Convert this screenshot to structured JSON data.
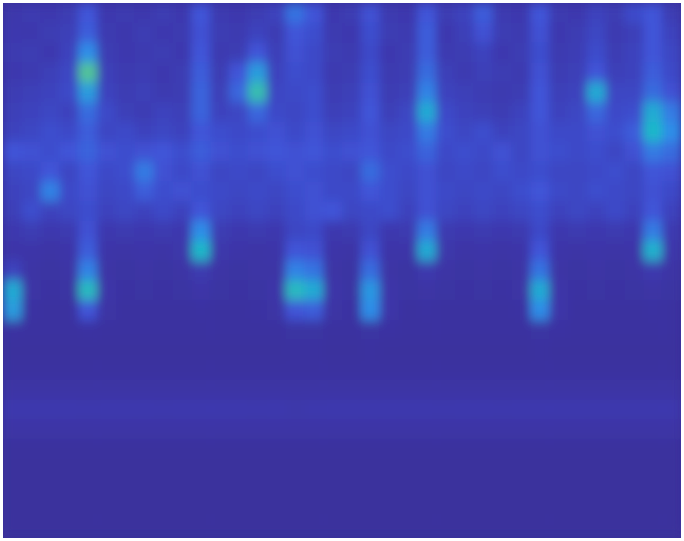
{
  "chart_data": {
    "type": "heatmap",
    "tick_labels": false,
    "color_range": [
      0,
      1
    ],
    "cells": [
      [
        0.12,
        0.15,
        0.14,
        0.16,
        0.3,
        0.14,
        0.15,
        0.13,
        0.16,
        0.14,
        0.3,
        0.15,
        0.13,
        0.16,
        0.2,
        0.38,
        0.3,
        0.14,
        0.16,
        0.28,
        0.15,
        0.13,
        0.3,
        0.16,
        0.2,
        0.32,
        0.15,
        0.14,
        0.3,
        0.15,
        0.14,
        0.2,
        0.16,
        0.25,
        0.3,
        0.16
      ],
      [
        0.14,
        0.13,
        0.16,
        0.18,
        0.32,
        0.15,
        0.13,
        0.16,
        0.14,
        0.15,
        0.28,
        0.16,
        0.15,
        0.2,
        0.16,
        0.3,
        0.26,
        0.15,
        0.14,
        0.26,
        0.16,
        0.15,
        0.32,
        0.14,
        0.18,
        0.28,
        0.16,
        0.15,
        0.28,
        0.14,
        0.16,
        0.22,
        0.15,
        0.18,
        0.3,
        0.2
      ],
      [
        0.15,
        0.16,
        0.14,
        0.2,
        0.45,
        0.16,
        0.14,
        0.15,
        0.16,
        0.14,
        0.3,
        0.15,
        0.16,
        0.3,
        0.18,
        0.28,
        0.24,
        0.16,
        0.15,
        0.24,
        0.14,
        0.16,
        0.32,
        0.15,
        0.16,
        0.2,
        0.14,
        0.16,
        0.26,
        0.15,
        0.17,
        0.25,
        0.16,
        0.2,
        0.3,
        0.22
      ],
      [
        0.14,
        0.15,
        0.18,
        0.22,
        0.7,
        0.18,
        0.15,
        0.16,
        0.14,
        0.16,
        0.32,
        0.16,
        0.3,
        0.5,
        0.2,
        0.26,
        0.24,
        0.15,
        0.16,
        0.26,
        0.15,
        0.16,
        0.36,
        0.18,
        0.15,
        0.18,
        0.16,
        0.15,
        0.28,
        0.16,
        0.18,
        0.3,
        0.18,
        0.2,
        0.32,
        0.24
      ],
      [
        0.16,
        0.18,
        0.2,
        0.24,
        0.5,
        0.2,
        0.16,
        0.18,
        0.15,
        0.16,
        0.34,
        0.18,
        0.35,
        0.65,
        0.22,
        0.24,
        0.26,
        0.16,
        0.18,
        0.28,
        0.16,
        0.18,
        0.42,
        0.2,
        0.18,
        0.16,
        0.15,
        0.16,
        0.3,
        0.18,
        0.2,
        0.55,
        0.22,
        0.22,
        0.36,
        0.28
      ],
      [
        0.18,
        0.2,
        0.22,
        0.2,
        0.36,
        0.24,
        0.18,
        0.16,
        0.2,
        0.18,
        0.34,
        0.2,
        0.22,
        0.35,
        0.24,
        0.22,
        0.26,
        0.18,
        0.2,
        0.3,
        0.18,
        0.22,
        0.55,
        0.24,
        0.2,
        0.18,
        0.16,
        0.2,
        0.3,
        0.2,
        0.22,
        0.35,
        0.24,
        0.26,
        0.55,
        0.4
      ],
      [
        0.2,
        0.22,
        0.26,
        0.24,
        0.32,
        0.22,
        0.24,
        0.2,
        0.22,
        0.2,
        0.3,
        0.26,
        0.24,
        0.26,
        0.28,
        0.24,
        0.28,
        0.22,
        0.24,
        0.28,
        0.22,
        0.24,
        0.4,
        0.26,
        0.22,
        0.26,
        0.2,
        0.22,
        0.28,
        0.24,
        0.24,
        0.28,
        0.26,
        0.32,
        0.6,
        0.45
      ],
      [
        0.3,
        0.28,
        0.26,
        0.3,
        0.34,
        0.28,
        0.26,
        0.28,
        0.3,
        0.26,
        0.32,
        0.28,
        0.26,
        0.28,
        0.3,
        0.28,
        0.3,
        0.26,
        0.28,
        0.3,
        0.24,
        0.26,
        0.34,
        0.24,
        0.26,
        0.24,
        0.28,
        0.22,
        0.28,
        0.26,
        0.24,
        0.26,
        0.22,
        0.28,
        0.4,
        0.36
      ],
      [
        0.22,
        0.24,
        0.3,
        0.22,
        0.3,
        0.24,
        0.26,
        0.4,
        0.28,
        0.24,
        0.28,
        0.22,
        0.24,
        0.22,
        0.26,
        0.28,
        0.26,
        0.24,
        0.22,
        0.36,
        0.26,
        0.24,
        0.28,
        0.22,
        0.24,
        0.22,
        0.26,
        0.24,
        0.26,
        0.22,
        0.22,
        0.24,
        0.26,
        0.22,
        0.3,
        0.28
      ],
      [
        0.2,
        0.22,
        0.42,
        0.24,
        0.28,
        0.22,
        0.24,
        0.32,
        0.26,
        0.28,
        0.26,
        0.24,
        0.22,
        0.24,
        0.22,
        0.26,
        0.28,
        0.24,
        0.24,
        0.3,
        0.26,
        0.22,
        0.28,
        0.24,
        0.22,
        0.24,
        0.22,
        0.26,
        0.3,
        0.24,
        0.22,
        0.26,
        0.24,
        0.22,
        0.28,
        0.24
      ],
      [
        0.18,
        0.26,
        0.2,
        0.22,
        0.26,
        0.2,
        0.22,
        0.2,
        0.24,
        0.2,
        0.3,
        0.22,
        0.2,
        0.22,
        0.2,
        0.24,
        0.28,
        0.3,
        0.22,
        0.24,
        0.26,
        0.2,
        0.28,
        0.22,
        0.2,
        0.22,
        0.2,
        0.22,
        0.26,
        0.2,
        0.22,
        0.2,
        0.24,
        0.2,
        0.3,
        0.2
      ],
      [
        0.14,
        0.16,
        0.14,
        0.15,
        0.28,
        0.14,
        0.15,
        0.14,
        0.15,
        0.14,
        0.45,
        0.16,
        0.14,
        0.15,
        0.14,
        0.22,
        0.24,
        0.14,
        0.15,
        0.22,
        0.14,
        0.15,
        0.4,
        0.15,
        0.14,
        0.15,
        0.14,
        0.15,
        0.24,
        0.14,
        0.15,
        0.14,
        0.15,
        0.14,
        0.4,
        0.15
      ],
      [
        0.1,
        0.1,
        0.09,
        0.1,
        0.32,
        0.1,
        0.09,
        0.1,
        0.09,
        0.11,
        0.6,
        0.12,
        0.1,
        0.09,
        0.1,
        0.3,
        0.28,
        0.1,
        0.09,
        0.28,
        0.1,
        0.1,
        0.55,
        0.12,
        0.09,
        0.1,
        0.09,
        0.1,
        0.3,
        0.1,
        0.09,
        0.1,
        0.09,
        0.1,
        0.58,
        0.12
      ],
      [
        0.2,
        0.08,
        0.07,
        0.08,
        0.42,
        0.08,
        0.07,
        0.08,
        0.07,
        0.08,
        0.15,
        0.08,
        0.07,
        0.08,
        0.08,
        0.42,
        0.38,
        0.08,
        0.07,
        0.36,
        0.08,
        0.07,
        0.14,
        0.08,
        0.07,
        0.08,
        0.07,
        0.08,
        0.38,
        0.08,
        0.07,
        0.08,
        0.07,
        0.08,
        0.14,
        0.08
      ],
      [
        0.55,
        0.08,
        0.06,
        0.07,
        0.62,
        0.1,
        0.06,
        0.07,
        0.06,
        0.07,
        0.1,
        0.07,
        0.06,
        0.07,
        0.1,
        0.62,
        0.55,
        0.1,
        0.07,
        0.48,
        0.1,
        0.07,
        0.08,
        0.07,
        0.06,
        0.07,
        0.06,
        0.08,
        0.55,
        0.1,
        0.06,
        0.07,
        0.06,
        0.07,
        0.08,
        0.07
      ],
      [
        0.5,
        0.06,
        0.05,
        0.05,
        0.3,
        0.08,
        0.05,
        0.05,
        0.05,
        0.05,
        0.06,
        0.05,
        0.05,
        0.06,
        0.08,
        0.3,
        0.32,
        0.08,
        0.06,
        0.45,
        0.1,
        0.05,
        0.06,
        0.05,
        0.05,
        0.05,
        0.05,
        0.06,
        0.45,
        0.1,
        0.05,
        0.05,
        0.05,
        0.05,
        0.06,
        0.05
      ],
      [
        0.06,
        0.05,
        0.05,
        0.05,
        0.06,
        0.05,
        0.05,
        0.05,
        0.05,
        0.05,
        0.05,
        0.05,
        0.05,
        0.05,
        0.05,
        0.07,
        0.07,
        0.05,
        0.05,
        0.07,
        0.06,
        0.05,
        0.05,
        0.05,
        0.05,
        0.05,
        0.05,
        0.05,
        0.07,
        0.06,
        0.05,
        0.05,
        0.05,
        0.05,
        0.05,
        0.05
      ],
      [
        0.04,
        0.04,
        0.04,
        0.04,
        0.04,
        0.04,
        0.04,
        0.04,
        0.04,
        0.04,
        0.04,
        0.04,
        0.04,
        0.04,
        0.04,
        0.05,
        0.05,
        0.04,
        0.04,
        0.05,
        0.04,
        0.04,
        0.04,
        0.04,
        0.04,
        0.04,
        0.04,
        0.04,
        0.05,
        0.04,
        0.04,
        0.04,
        0.04,
        0.04,
        0.04,
        0.04
      ],
      [
        0.05,
        0.05,
        0.05,
        0.05,
        0.05,
        0.05,
        0.05,
        0.05,
        0.05,
        0.05,
        0.05,
        0.05,
        0.05,
        0.05,
        0.05,
        0.05,
        0.05,
        0.05,
        0.05,
        0.05,
        0.05,
        0.05,
        0.05,
        0.05,
        0.05,
        0.05,
        0.05,
        0.05,
        0.05,
        0.05,
        0.05,
        0.05,
        0.05,
        0.05,
        0.05,
        0.05
      ],
      [
        0.08,
        0.08,
        0.08,
        0.08,
        0.08,
        0.08,
        0.08,
        0.08,
        0.08,
        0.08,
        0.08,
        0.08,
        0.08,
        0.08,
        0.08,
        0.08,
        0.08,
        0.08,
        0.08,
        0.08,
        0.08,
        0.08,
        0.08,
        0.08,
        0.08,
        0.08,
        0.08,
        0.08,
        0.08,
        0.08,
        0.08,
        0.08,
        0.08,
        0.08,
        0.08,
        0.08
      ],
      [
        0.14,
        0.14,
        0.14,
        0.14,
        0.13,
        0.14,
        0.14,
        0.14,
        0.13,
        0.14,
        0.14,
        0.14,
        0.14,
        0.13,
        0.14,
        0.12,
        0.13,
        0.14,
        0.14,
        0.14,
        0.14,
        0.14,
        0.14,
        0.13,
        0.14,
        0.14,
        0.13,
        0.14,
        0.14,
        0.14,
        0.14,
        0.14,
        0.14,
        0.14,
        0.14,
        0.14
      ],
      [
        0.09,
        0.09,
        0.09,
        0.09,
        0.09,
        0.09,
        0.09,
        0.09,
        0.09,
        0.09,
        0.09,
        0.09,
        0.09,
        0.09,
        0.09,
        0.09,
        0.09,
        0.09,
        0.09,
        0.09,
        0.09,
        0.09,
        0.09,
        0.09,
        0.09,
        0.09,
        0.09,
        0.09,
        0.09,
        0.09,
        0.09,
        0.09,
        0.09,
        0.09,
        0.09,
        0.09
      ],
      [
        0.04,
        0.04,
        0.04,
        0.04,
        0.04,
        0.04,
        0.04,
        0.04,
        0.04,
        0.04,
        0.04,
        0.04,
        0.04,
        0.04,
        0.04,
        0.04,
        0.04,
        0.04,
        0.04,
        0.04,
        0.04,
        0.04,
        0.04,
        0.04,
        0.04,
        0.04,
        0.04,
        0.04,
        0.04,
        0.04,
        0.04,
        0.04,
        0.04,
        0.04,
        0.04,
        0.04
      ],
      [
        0.03,
        0.03,
        0.03,
        0.03,
        0.03,
        0.03,
        0.03,
        0.03,
        0.03,
        0.03,
        0.03,
        0.03,
        0.03,
        0.03,
        0.03,
        0.03,
        0.03,
        0.03,
        0.03,
        0.03,
        0.03,
        0.03,
        0.03,
        0.03,
        0.03,
        0.03,
        0.03,
        0.03,
        0.03,
        0.03,
        0.03,
        0.03,
        0.03,
        0.03,
        0.03,
        0.03
      ],
      [
        0.03,
        0.03,
        0.03,
        0.03,
        0.03,
        0.03,
        0.03,
        0.03,
        0.03,
        0.03,
        0.03,
        0.03,
        0.03,
        0.03,
        0.03,
        0.03,
        0.03,
        0.03,
        0.03,
        0.03,
        0.03,
        0.03,
        0.03,
        0.03,
        0.03,
        0.03,
        0.03,
        0.03,
        0.03,
        0.03,
        0.03,
        0.03,
        0.03,
        0.03,
        0.03,
        0.03
      ],
      [
        0.03,
        0.03,
        0.03,
        0.03,
        0.03,
        0.03,
        0.03,
        0.03,
        0.03,
        0.03,
        0.03,
        0.03,
        0.03,
        0.03,
        0.03,
        0.03,
        0.03,
        0.03,
        0.03,
        0.03,
        0.03,
        0.03,
        0.03,
        0.03,
        0.03,
        0.03,
        0.03,
        0.03,
        0.03,
        0.03,
        0.03,
        0.03,
        0.03,
        0.03,
        0.03,
        0.03
      ],
      [
        0.03,
        0.03,
        0.03,
        0.03,
        0.03,
        0.03,
        0.03,
        0.03,
        0.03,
        0.03,
        0.03,
        0.03,
        0.03,
        0.03,
        0.03,
        0.03,
        0.03,
        0.03,
        0.03,
        0.03,
        0.03,
        0.03,
        0.03,
        0.03,
        0.03,
        0.03,
        0.03,
        0.03,
        0.03,
        0.03,
        0.03,
        0.03,
        0.03,
        0.03,
        0.03,
        0.03
      ]
    ]
  }
}
